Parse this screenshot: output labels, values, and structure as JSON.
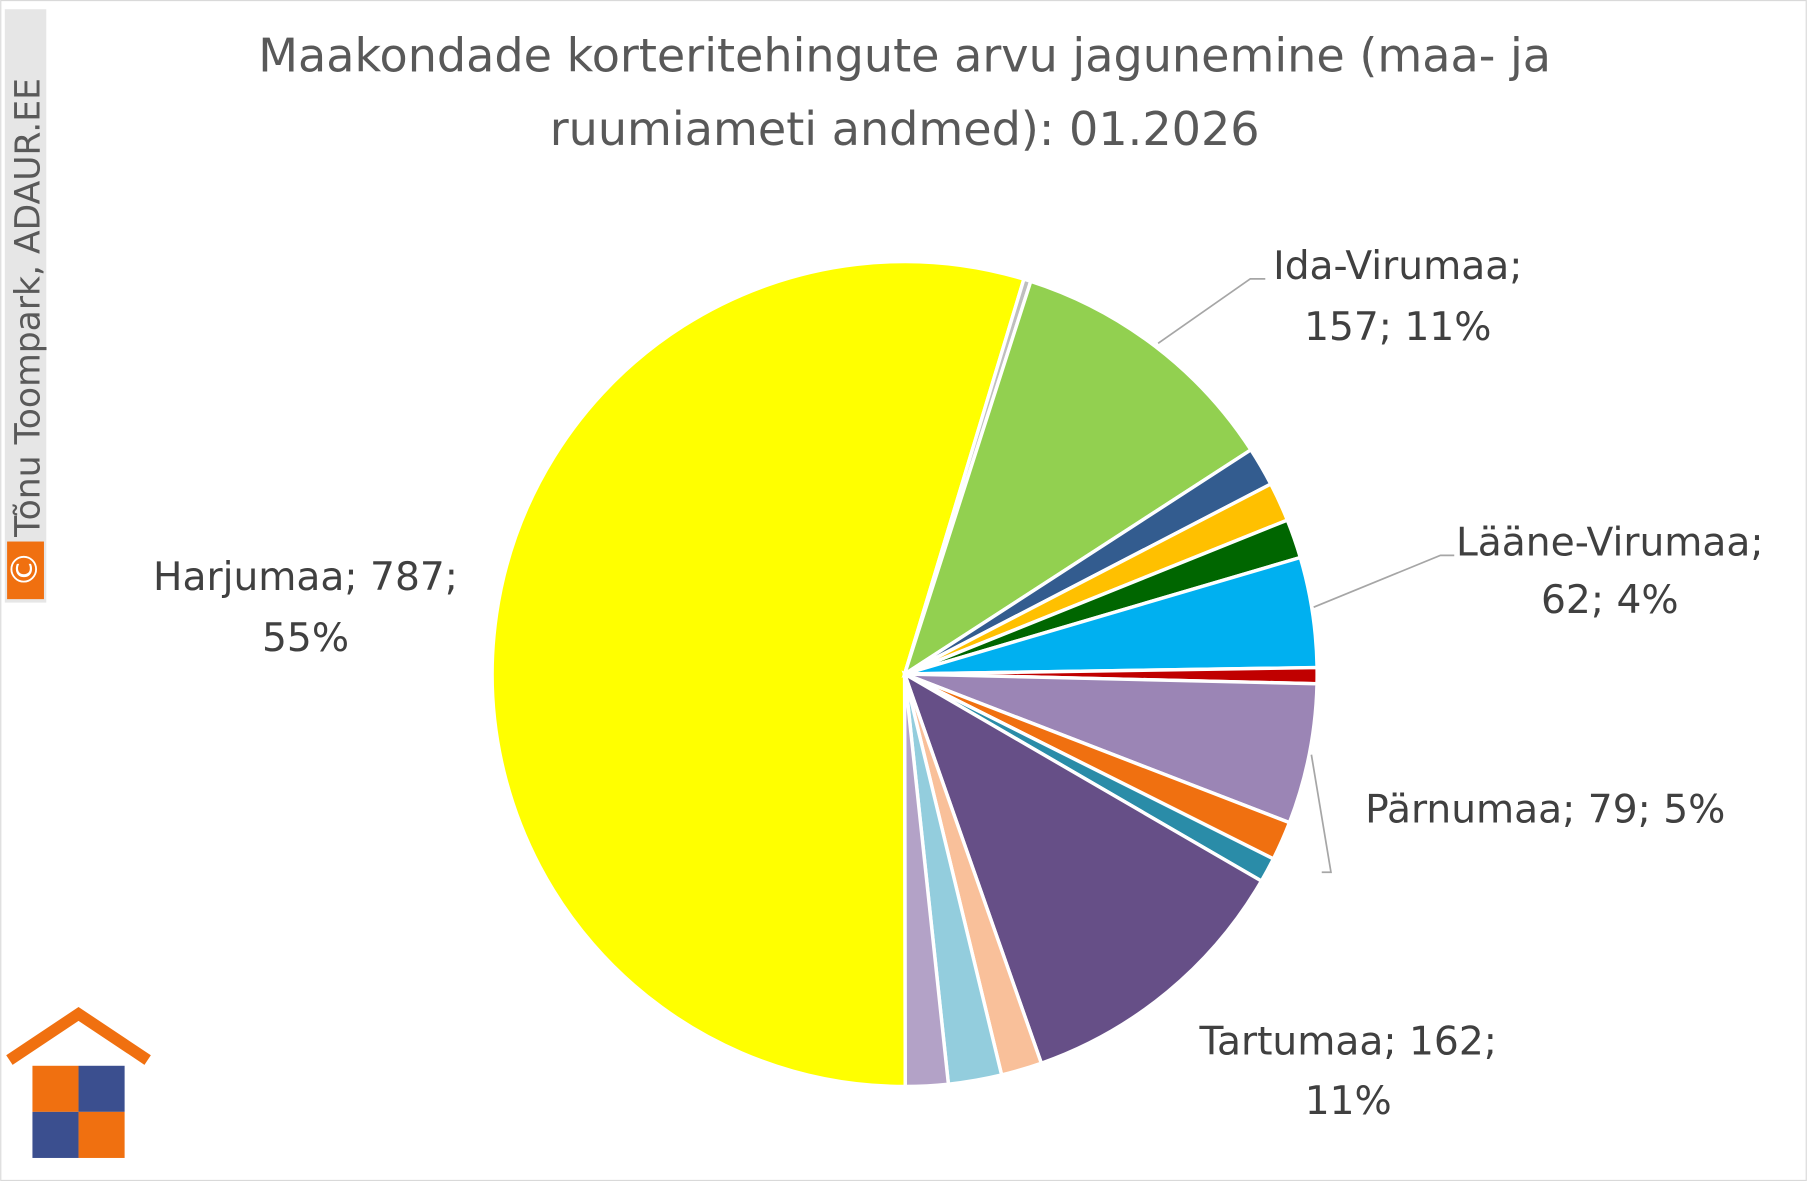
{
  "chart_data": {
    "type": "pie",
    "title_lines": [
      "Maakondade korteritehingute arvu jagunemine (maa- ja",
      "ruumiameti andmed): 01.2026"
    ],
    "values": [
      787,
      4,
      157,
      22,
      22,
      22,
      62,
      9,
      79,
      22,
      14,
      162,
      23,
      30,
      24
    ],
    "value_labels": [
      [
        "Harjumaa; 787;",
        "55%"
      ],
      null,
      [
        "Ida-Virumaa;",
        "157; 11%"
      ],
      null,
      null,
      null,
      [
        "Lääne-Virumaa;",
        "62; 4%"
      ],
      null,
      [
        "Pärnumaa; 79; 5%"
      ],
      null,
      null,
      [
        "Tartumaa; 162;",
        "11%"
      ],
      null,
      null,
      null
    ],
    "colors": [
      "#ffff00",
      "#bfbfbf",
      "#92d050",
      "#335c8f",
      "#ffc000",
      "#006600",
      "#00b0f0",
      "#c00000",
      "#9b85b5",
      "#f07010",
      "#2a8ca8",
      "#664f87",
      "#f9c09a",
      "#93cddd",
      "#b3a2c7"
    ]
  },
  "watermark": {
    "symbol": "©",
    "text": "Tõnu Toompark, ADAUR.EE"
  }
}
